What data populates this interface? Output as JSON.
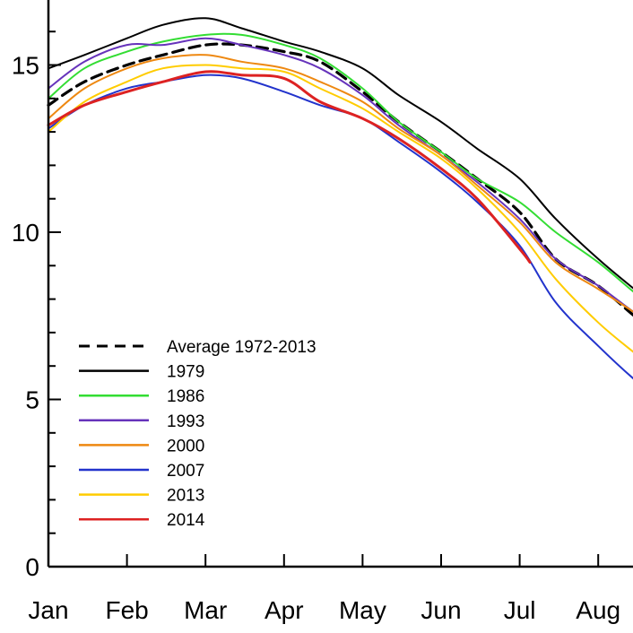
{
  "chart_data": {
    "type": "line",
    "title": "",
    "xlabel": "",
    "ylabel": "",
    "x_months": [
      "Jan",
      "Feb",
      "Mar",
      "Apr",
      "May",
      "Jun",
      "Jul",
      "Aug"
    ],
    "ylim": [
      0,
      17
    ],
    "y_ticks": [
      0,
      5,
      10,
      15
    ],
    "grid": false,
    "legend_position": "bottom-left",
    "series": [
      {
        "name": "Average 1972-2013",
        "color": "#000000",
        "dashed": true,
        "x": [
          "Jan 1",
          "Jan 15",
          "Feb 1",
          "Feb 15",
          "Mar 1",
          "Mar 15",
          "Apr 1",
          "Apr 15",
          "May 1",
          "May 15",
          "Jun 1",
          "Jun 15",
          "Jul 1",
          "Jul 15",
          "Aug 1",
          "Aug 15",
          "Aug 22"
        ],
        "y": [
          13.8,
          14.5,
          15.0,
          15.3,
          15.6,
          15.6,
          15.4,
          15.1,
          14.2,
          13.3,
          12.4,
          11.6,
          10.6,
          9.2,
          8.4,
          7.5,
          7.1
        ]
      },
      {
        "name": "1979",
        "color": "#000000",
        "dashed": false,
        "x": [
          "Jan 1",
          "Jan 15",
          "Feb 1",
          "Feb 15",
          "Mar 1",
          "Mar 15",
          "Apr 1",
          "Apr 15",
          "May 1",
          "May 15",
          "Jun 1",
          "Jun 15",
          "Jul 1",
          "Jul 15",
          "Aug 1",
          "Aug 15",
          "Aug 22"
        ],
        "y": [
          14.9,
          15.3,
          15.8,
          16.2,
          16.4,
          16.1,
          15.7,
          15.4,
          14.9,
          14.1,
          13.3,
          12.5,
          11.6,
          10.4,
          9.2,
          8.3,
          7.9
        ]
      },
      {
        "name": "1986",
        "color": "#33dd33",
        "dashed": false,
        "x": [
          "Jan 1",
          "Jan 15",
          "Feb 1",
          "Feb 15",
          "Mar 1",
          "Mar 15",
          "Apr 1",
          "Apr 15",
          "May 1",
          "May 15",
          "Jun 1",
          "Jun 15",
          "Jul 1",
          "Jul 15",
          "Aug 1",
          "Aug 15",
          "Aug 22"
        ],
        "y": [
          14.0,
          14.9,
          15.4,
          15.7,
          15.9,
          15.9,
          15.6,
          15.2,
          14.3,
          13.3,
          12.4,
          11.6,
          10.9,
          10.0,
          9.1,
          8.2,
          7.8
        ]
      },
      {
        "name": "1993",
        "color": "#6633bb",
        "dashed": false,
        "x": [
          "Jan 1",
          "Jan 15",
          "Feb 1",
          "Feb 15",
          "Mar 1",
          "Mar 15",
          "Apr 1",
          "Apr 15",
          "May 1",
          "May 15",
          "Jun 1",
          "Jun 15",
          "Jul 1",
          "Jul 15",
          "Aug 1",
          "Aug 15",
          "Aug 22"
        ],
        "y": [
          14.3,
          15.1,
          15.6,
          15.6,
          15.8,
          15.6,
          15.3,
          14.9,
          14.1,
          13.2,
          12.3,
          11.5,
          10.4,
          9.2,
          8.4,
          7.6,
          7.3
        ]
      },
      {
        "name": "2000",
        "color": "#ee8811",
        "dashed": false,
        "x": [
          "Jan 1",
          "Jan 15",
          "Feb 1",
          "Feb 15",
          "Mar 1",
          "Mar 15",
          "Apr 1",
          "Apr 15",
          "May 1",
          "May 15",
          "Jun 1",
          "Jun 15",
          "Jul 1",
          "Jul 15",
          "Aug 1",
          "Aug 15",
          "Aug 22"
        ],
        "y": [
          13.4,
          14.3,
          14.9,
          15.2,
          15.3,
          15.1,
          14.9,
          14.5,
          13.9,
          13.1,
          12.3,
          11.4,
          10.3,
          9.1,
          8.3,
          7.6,
          7.2
        ]
      },
      {
        "name": "2007",
        "color": "#2233cc",
        "dashed": false,
        "x": [
          "Jan 1",
          "Jan 15",
          "Feb 1",
          "Feb 15",
          "Mar 1",
          "Mar 15",
          "Apr 1",
          "Apr 15",
          "May 1",
          "May 15",
          "Jun 1",
          "Jun 15",
          "Jul 1",
          "Jul 15",
          "Aug 1",
          "Aug 15",
          "Aug 22"
        ],
        "y": [
          13.1,
          13.8,
          14.3,
          14.5,
          14.7,
          14.6,
          14.2,
          13.8,
          13.4,
          12.7,
          11.8,
          10.9,
          9.6,
          7.9,
          6.6,
          5.6,
          5.2
        ]
      },
      {
        "name": "2013",
        "color": "#ffcc00",
        "dashed": false,
        "x": [
          "Jan 1",
          "Jan 15",
          "Feb 1",
          "Feb 15",
          "Mar 1",
          "Mar 15",
          "Apr 1",
          "Apr 15",
          "May 1",
          "May 15",
          "Jun 1",
          "Jun 15",
          "Jul 1",
          "Jul 15",
          "Aug 1",
          "Aug 15",
          "Aug 22"
        ],
        "y": [
          13.0,
          13.9,
          14.5,
          14.9,
          15.0,
          14.9,
          14.8,
          14.3,
          13.7,
          13.0,
          12.2,
          11.3,
          10.0,
          8.6,
          7.3,
          6.4,
          6.0
        ]
      },
      {
        "name": "2014",
        "color": "#dd2222",
        "dashed": false,
        "x": [
          "Jan 1",
          "Jan 15",
          "Feb 1",
          "Feb 15",
          "Mar 1",
          "Mar 15",
          "Apr 1",
          "Apr 15",
          "May 1",
          "May 15",
          "Jun 1",
          "Jun 15",
          "Jul 1",
          "Jul 5"
        ],
        "y": [
          13.2,
          13.8,
          14.2,
          14.5,
          14.8,
          14.7,
          14.6,
          13.9,
          13.4,
          12.8,
          11.9,
          11.0,
          9.5,
          9.1
        ]
      }
    ]
  }
}
